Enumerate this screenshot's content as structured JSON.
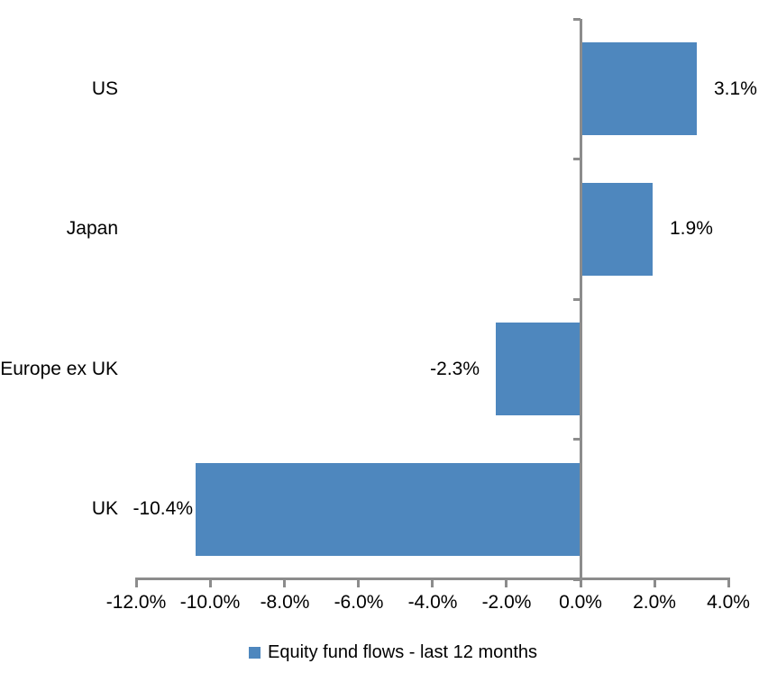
{
  "chart_data": {
    "type": "bar",
    "orientation": "horizontal",
    "title": "",
    "categories": [
      "US",
      "Japan",
      "Europe ex UK",
      "UK"
    ],
    "values": [
      3.1,
      1.9,
      -2.3,
      -10.4
    ],
    "value_labels": [
      "3.1%",
      "1.9%",
      "-2.3%",
      "-10.4%"
    ],
    "series_name": "Equity fund flows - last 12 months",
    "xlabel": "",
    "ylabel": "",
    "xlim": [
      -12,
      4
    ],
    "x_tick_step": 2,
    "x_ticks": [
      -12,
      -10,
      -8,
      -6,
      -4,
      -2,
      0,
      2,
      4
    ],
    "x_tick_labels": [
      "-12.0%",
      "-10.0%",
      "-8.0%",
      "-6.0%",
      "-4.0%",
      "-2.0%",
      "0.0%",
      "2.0%",
      "4.0%"
    ],
    "grid": "off",
    "legend_position": "bottom-center",
    "colors": {
      "bar_fill": "#4E87BE",
      "axis_line": "#8C8C8C",
      "text": "#000000",
      "background": "#FFFFFF"
    }
  },
  "legend": {
    "label": "Equity fund flows - last 12 months"
  }
}
